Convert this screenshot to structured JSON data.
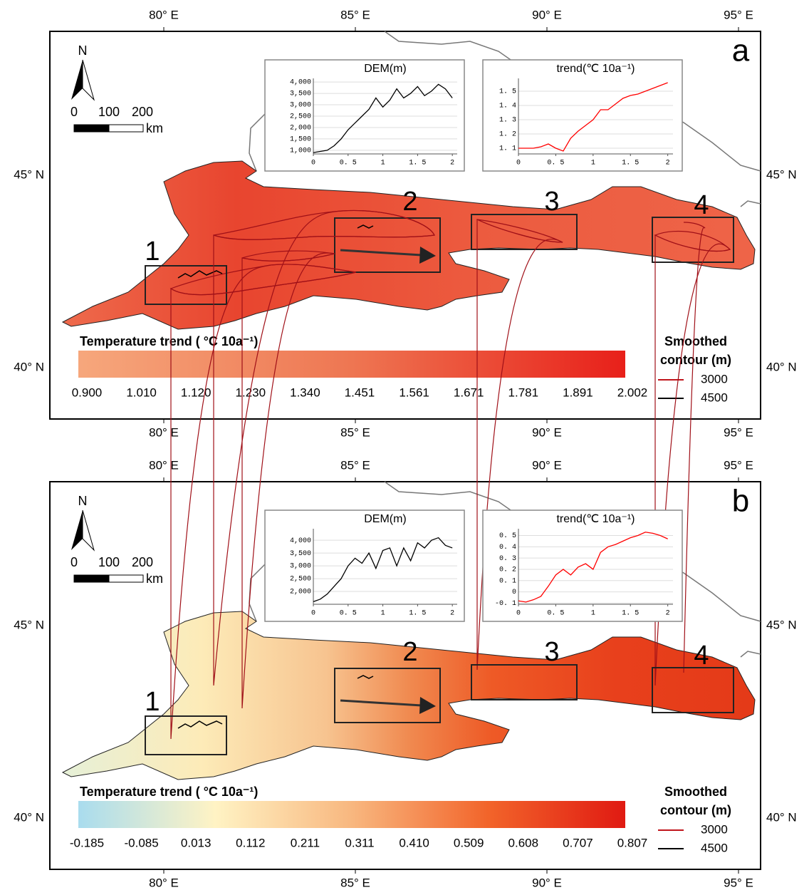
{
  "lon_labels": [
    "80° E",
    "85° E",
    "90° E",
    "95° E"
  ],
  "lat_labels": [
    "45° N",
    "40° N"
  ],
  "north": "N",
  "scale": {
    "ticks": [
      "0",
      "100",
      "200"
    ],
    "unit": "km"
  },
  "region_labels": [
    "1",
    "2",
    "3",
    "4"
  ],
  "panels": [
    {
      "label": "a",
      "insets": [
        {
          "type": "line",
          "title": "DEM(m)",
          "color": "#000000",
          "x": [
            0,
            0.1,
            0.2,
            0.3,
            0.4,
            0.5,
            0.6,
            0.7,
            0.8,
            0.9,
            1.0,
            1.1,
            1.2,
            1.3,
            1.4,
            1.5,
            1.6,
            1.7,
            1.8,
            1.9,
            2.0
          ],
          "values": [
            900,
            950,
            1000,
            1200,
            1500,
            1900,
            2200,
            2500,
            2800,
            3300,
            2900,
            3200,
            3700,
            3300,
            3500,
            3800,
            3400,
            3600,
            3900,
            3700,
            3300
          ],
          "xlim": [
            0,
            2.07
          ],
          "xticks": [
            0,
            {
              "value": 0.5,
              "label": "0. 5"
            },
            1,
            {
              "value": 1.5,
              "label": "1. 5"
            },
            2
          ],
          "ylim": [
            840,
            4160
          ],
          "yticks": [
            {
              "value": 1000,
              "label": "1,000"
            },
            {
              "value": 1500,
              "label": "1,500"
            },
            {
              "value": 2000,
              "label": "2,000"
            },
            {
              "value": 2500,
              "label": "2,500"
            },
            {
              "value": 3000,
              "label": "3,000"
            },
            {
              "value": 3500,
              "label": "3,500"
            },
            {
              "value": 4000,
              "label": "4,000"
            }
          ]
        },
        {
          "type": "line",
          "title": "trend(℃ 10a⁻¹)",
          "color": "#ff0000",
          "x": [
            0,
            0.1,
            0.2,
            0.3,
            0.4,
            0.5,
            0.6,
            0.7,
            0.8,
            0.9,
            1.0,
            1.1,
            1.2,
            1.3,
            1.4,
            1.5,
            1.6,
            1.7,
            1.8,
            1.9,
            2.0
          ],
          "values": [
            1.1,
            1.1,
            1.1,
            1.11,
            1.13,
            1.1,
            1.08,
            1.17,
            1.22,
            1.26,
            1.3,
            1.37,
            1.37,
            1.41,
            1.45,
            1.47,
            1.48,
            1.5,
            1.52,
            1.54,
            1.56
          ],
          "xlim": [
            0,
            2.07
          ],
          "xticks": [
            0,
            {
              "value": 0.5,
              "label": "0. 5"
            },
            1,
            {
              "value": 1.5,
              "label": "1. 5"
            },
            2
          ],
          "ylim": [
            1.06,
            1.59
          ],
          "yticks": [
            {
              "value": 1.1,
              "label": "1. 1"
            },
            {
              "value": 1.2,
              "label": "1. 2"
            },
            {
              "value": 1.3,
              "label": "1. 3"
            },
            {
              "value": 1.4,
              "label": "1. 4"
            },
            {
              "value": 1.5,
              "label": "1. 5"
            }
          ]
        }
      ],
      "colorbar": {
        "title": "Temperature trend ( °C 10a⁻¹)",
        "colors": [
          "#f6a77c",
          "#ee7652",
          "#e8201a"
        ],
        "ticks": [
          "0.900",
          "1.010",
          "1.120",
          "1.230",
          "1.340",
          "1.451",
          "1.561",
          "1.671",
          "1.781",
          "1.891",
          "2.002"
        ]
      },
      "legend": {
        "title_lines": [
          "Smoothed",
          "contour (m)"
        ],
        "items": [
          {
            "label": "3000",
            "color": "#c0141b"
          },
          {
            "label": "4500",
            "color": "#000000"
          }
        ]
      }
    },
    {
      "label": "b",
      "insets": [
        {
          "type": "line",
          "title": "DEM(m)",
          "color": "#000000",
          "x": [
            0,
            0.1,
            0.2,
            0.3,
            0.4,
            0.5,
            0.6,
            0.7,
            0.8,
            0.9,
            1.0,
            1.1,
            1.2,
            1.3,
            1.4,
            1.5,
            1.6,
            1.7,
            1.8,
            1.9,
            2.0
          ],
          "values": [
            1600,
            1700,
            1900,
            2200,
            2500,
            3000,
            3300,
            3100,
            3500,
            2900,
            3600,
            3700,
            3000,
            3700,
            3200,
            3900,
            3700,
            4000,
            4100,
            3800,
            3700
          ],
          "xlim": [
            0,
            2.07
          ],
          "xticks": [
            0,
            {
              "value": 0.5,
              "label": "0. 5"
            },
            1,
            {
              "value": 1.5,
              "label": "1. 5"
            },
            2
          ],
          "ylim": [
            1500,
            4450
          ],
          "yticks": [
            {
              "value": 2000,
              "label": "2,000"
            },
            {
              "value": 2500,
              "label": "2,500"
            },
            {
              "value": 3000,
              "label": "3,000"
            },
            {
              "value": 3500,
              "label": "3,500"
            },
            {
              "value": 4000,
              "label": "4,000"
            }
          ]
        },
        {
          "type": "line",
          "title": "trend(℃ 10a⁻¹)",
          "color": "#ff0000",
          "x": [
            0,
            0.1,
            0.2,
            0.3,
            0.4,
            0.5,
            0.6,
            0.7,
            0.8,
            0.9,
            1.0,
            1.1,
            1.2,
            1.3,
            1.4,
            1.5,
            1.6,
            1.7,
            1.8,
            1.9,
            2.0
          ],
          "values": [
            -0.08,
            -0.09,
            -0.07,
            -0.04,
            0.05,
            0.15,
            0.2,
            0.15,
            0.22,
            0.25,
            0.2,
            0.35,
            0.4,
            0.42,
            0.45,
            0.48,
            0.5,
            0.53,
            0.52,
            0.5,
            0.47
          ],
          "xlim": [
            0,
            2.07
          ],
          "xticks": [
            0,
            {
              "value": 0.5,
              "label": "0. 5"
            },
            1,
            {
              "value": 1.5,
              "label": "1. 5"
            },
            2
          ],
          "ylim": [
            -0.11,
            0.56
          ],
          "yticks": [
            {
              "value": -0.1,
              "label": "-0. 1"
            },
            0,
            {
              "value": 0.1,
              "label": "0. 1"
            },
            {
              "value": 0.2,
              "label": "0. 2"
            },
            {
              "value": 0.3,
              "label": "0. 3"
            },
            {
              "value": 0.4,
              "label": "0. 4"
            },
            {
              "value": 0.5,
              "label": "0. 5"
            }
          ]
        }
      ],
      "colorbar": {
        "title": "Temperature trend ( °C 10a⁻¹)",
        "colors": [
          "#a9dcee",
          "#fff3c4",
          "#f8b77f",
          "#f2642a",
          "#e01a12"
        ],
        "ticks": [
          "-0.185",
          "-0.085",
          "0.013",
          "0.112",
          "0.211",
          "0.311",
          "0.410",
          "0.509",
          "0.608",
          "0.707",
          "0.807"
        ]
      },
      "legend": {
        "title_lines": [
          "Smoothed",
          "contour (m)"
        ],
        "items": [
          {
            "label": "3000",
            "color": "#c0141b"
          },
          {
            "label": "4500",
            "color": "#000000"
          }
        ]
      }
    }
  ]
}
